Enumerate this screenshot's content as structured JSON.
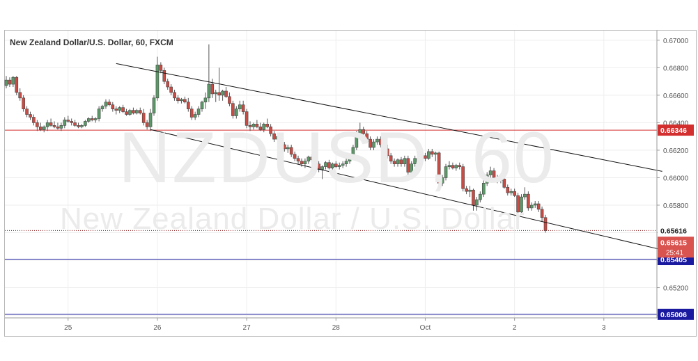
{
  "chart_data": {
    "type": "candlestick",
    "title": "New Zealand Dollar/U.S. Dollar, 60, FXCM",
    "watermark_symbol": "NZDUSD, 60",
    "watermark_name": "New Zealand Dollar / U.S. Dollar",
    "x_labels": [
      {
        "label": "25",
        "index": 18
      },
      {
        "label": "26",
        "index": 44
      },
      {
        "label": "27",
        "index": 70
      },
      {
        "label": "28",
        "index": 96
      },
      {
        "label": "Oct",
        "index": 122
      },
      {
        "label": "2",
        "index": 148
      },
      {
        "label": "3",
        "index": 174
      }
    ],
    "y_axis": {
      "ylim": [
        0.6498,
        0.6707
      ],
      "ticks": [
        "0.67000",
        "0.66800",
        "0.66600",
        "0.66400",
        "0.66200",
        "0.66000",
        "0.65800",
        "0.65600",
        "0.65400",
        "0.65200",
        "0.65000"
      ]
    },
    "horizontal_levels": [
      {
        "value": 0.66346,
        "label": "0.66346",
        "color": "#d32f2f",
        "style": "solid"
      },
      {
        "value": 0.65405,
        "label": "0.65405",
        "color": "#1a1aa0",
        "style": "solid"
      },
      {
        "value": 0.65006,
        "label": "0.65006",
        "color": "#1a1aa0",
        "style": "solid"
      },
      {
        "value": 0.65616,
        "label": "0.65616",
        "color": "#8a1a1a",
        "style": "dotted"
      }
    ],
    "price_labels": {
      "last": "0.65615",
      "countdown": "25:41"
    },
    "channel_lines": [
      {
        "from": [
          32,
          0.6683
        ],
        "to": [
          191,
          0.66046
        ]
      },
      {
        "from": [
          42,
          0.6635
        ],
        "to": [
          191,
          0.65475
        ]
      }
    ],
    "candles": [
      [
        0.6667,
        0.6674,
        0.6665,
        0.6671
      ],
      [
        0.6671,
        0.6673,
        0.6666,
        0.6668
      ],
      [
        0.6668,
        0.6674,
        0.6666,
        0.6673
      ],
      [
        0.6673,
        0.6674,
        0.666,
        0.6662
      ],
      [
        0.6662,
        0.6665,
        0.6656,
        0.6658
      ],
      [
        0.6658,
        0.666,
        0.6648,
        0.665
      ],
      [
        0.665,
        0.6652,
        0.6644,
        0.6646
      ],
      [
        0.6646,
        0.6648,
        0.6642,
        0.6644
      ],
      [
        0.6644,
        0.6646,
        0.6638,
        0.664
      ],
      [
        0.664,
        0.6642,
        0.6634,
        0.6637
      ],
      [
        0.6637,
        0.664,
        0.6634,
        0.6635
      ],
      [
        0.6635,
        0.6638,
        0.6633,
        0.6637
      ],
      [
        0.6637,
        0.6642,
        0.6634,
        0.664
      ],
      [
        0.664,
        0.6643,
        0.6637,
        0.6638
      ],
      [
        0.6638,
        0.6641,
        0.6636,
        0.6637
      ],
      [
        0.6637,
        0.664,
        0.6635,
        0.6636
      ],
      [
        0.6636,
        0.664,
        0.6634,
        0.6638
      ],
      [
        0.6638,
        0.6644,
        0.6636,
        0.6642
      ],
      [
        0.6642,
        0.6645,
        0.664,
        0.6641
      ],
      [
        0.6641,
        0.6643,
        0.6638,
        0.664
      ],
      [
        0.664,
        0.6642,
        0.6637,
        0.6638
      ],
      [
        0.6638,
        0.664,
        0.6636,
        0.6637
      ],
      [
        0.6637,
        0.6639,
        0.6636,
        0.6638
      ],
      [
        0.6638,
        0.6642,
        0.6637,
        0.6641
      ],
      [
        0.6641,
        0.6644,
        0.664,
        0.6643
      ],
      [
        0.6643,
        0.6645,
        0.6641,
        0.6642
      ],
      [
        0.6642,
        0.6644,
        0.664,
        0.6643
      ],
      [
        0.6643,
        0.6652,
        0.6641,
        0.665
      ],
      [
        0.665,
        0.6653,
        0.6648,
        0.6652
      ],
      [
        0.6652,
        0.6657,
        0.665,
        0.6655
      ],
      [
        0.6655,
        0.6657,
        0.6652,
        0.6653
      ],
      [
        0.6653,
        0.6655,
        0.6648,
        0.665
      ],
      [
        0.665,
        0.6652,
        0.6646,
        0.6649
      ],
      [
        0.6649,
        0.6652,
        0.6647,
        0.6651
      ],
      [
        0.6651,
        0.6653,
        0.6647,
        0.6648
      ],
      [
        0.6648,
        0.665,
        0.6645,
        0.6646
      ],
      [
        0.6646,
        0.665,
        0.6645,
        0.6649
      ],
      [
        0.6649,
        0.6651,
        0.6646,
        0.6647
      ],
      [
        0.6647,
        0.665,
        0.6646,
        0.6649
      ],
      [
        0.6649,
        0.6651,
        0.6646,
        0.6647
      ],
      [
        0.6647,
        0.665,
        0.6638,
        0.664
      ],
      [
        0.664,
        0.6642,
        0.6635,
        0.6637
      ],
      [
        0.6637,
        0.665,
        0.6634,
        0.6647
      ],
      [
        0.6647,
        0.666,
        0.6645,
        0.6658
      ],
      [
        0.6658,
        0.6688,
        0.6656,
        0.6682
      ],
      [
        0.6682,
        0.6684,
        0.6676,
        0.6678
      ],
      [
        0.6678,
        0.668,
        0.6668,
        0.667
      ],
      [
        0.667,
        0.6672,
        0.6664,
        0.6666
      ],
      [
        0.6666,
        0.6668,
        0.666,
        0.6662
      ],
      [
        0.6662,
        0.6664,
        0.6656,
        0.6658
      ],
      [
        0.6658,
        0.666,
        0.6654,
        0.6656
      ],
      [
        0.6656,
        0.6658,
        0.6654,
        0.6657
      ],
      [
        0.6657,
        0.6659,
        0.6654,
        0.6655
      ],
      [
        0.6655,
        0.6658,
        0.6648,
        0.665
      ],
      [
        0.665,
        0.6652,
        0.6642,
        0.6644
      ],
      [
        0.6644,
        0.6648,
        0.6642,
        0.6646
      ],
      [
        0.6646,
        0.6652,
        0.6644,
        0.665
      ],
      [
        0.665,
        0.6656,
        0.6648,
        0.6655
      ],
      [
        0.6655,
        0.6662,
        0.665,
        0.6658
      ],
      [
        0.6658,
        0.6697,
        0.6655,
        0.6668
      ],
      [
        0.6668,
        0.6672,
        0.6658,
        0.6661
      ],
      [
        0.6661,
        0.6664,
        0.6655,
        0.6662
      ],
      [
        0.6662,
        0.668,
        0.6656,
        0.666
      ],
      [
        0.666,
        0.6664,
        0.6656,
        0.6663
      ],
      [
        0.6663,
        0.6666,
        0.6658,
        0.6659
      ],
      [
        0.6659,
        0.6662,
        0.6652,
        0.6654
      ],
      [
        0.6654,
        0.6656,
        0.6643,
        0.6645
      ],
      [
        0.6645,
        0.6652,
        0.6643,
        0.665
      ],
      [
        0.665,
        0.6656,
        0.6648,
        0.6653
      ],
      [
        0.6653,
        0.6656,
        0.6646,
        0.6648
      ],
      [
        0.6648,
        0.665,
        0.6636,
        0.6638
      ],
      [
        0.6638,
        0.6641,
        0.6634,
        0.6637
      ],
      [
        0.6637,
        0.664,
        0.6635,
        0.6639
      ],
      [
        0.6639,
        0.6642,
        0.6636,
        0.6637
      ],
      [
        0.6637,
        0.664,
        0.6634,
        0.6635
      ],
      [
        0.6635,
        0.664,
        0.6633,
        0.6639
      ],
      [
        0.6639,
        0.6643,
        0.6636,
        0.6637
      ],
      [
        0.6637,
        0.6639,
        0.663,
        0.6632
      ],
      [
        0.6632,
        0.6634,
        0.6626,
        0.6628
      ],
      [
        0.6628,
        0.6632,
        0.6626,
        0.663
      ],
      [
        0.663,
        0.6632,
        0.6622,
        0.6624
      ],
      [
        0.6624,
        0.6626,
        0.6619,
        0.6621
      ],
      [
        0.6621,
        0.6624,
        0.6618,
        0.6622
      ],
      [
        0.6622,
        0.6624,
        0.6615,
        0.6617
      ],
      [
        0.6617,
        0.6619,
        0.6612,
        0.6614
      ],
      [
        0.6614,
        0.6616,
        0.661,
        0.6612
      ],
      [
        0.6612,
        0.6614,
        0.6608,
        0.661
      ],
      [
        0.661,
        0.6614,
        0.6607,
        0.6612
      ],
      [
        0.6612,
        0.6616,
        0.661,
        0.6615
      ],
      [
        0.6615,
        0.6617,
        0.6611,
        0.6613
      ],
      [
        0.6613,
        0.6615,
        0.6608,
        0.661
      ],
      [
        0.661,
        0.6612,
        0.6604,
        0.6606
      ],
      [
        0.6606,
        0.6609,
        0.6599,
        0.6608
      ],
      [
        0.6608,
        0.6612,
        0.6606,
        0.6611
      ],
      [
        0.6611,
        0.6613,
        0.6606,
        0.6607
      ],
      [
        0.6607,
        0.6611,
        0.6605,
        0.661
      ],
      [
        0.661,
        0.6612,
        0.6607,
        0.6608
      ],
      [
        0.6608,
        0.6611,
        0.6606,
        0.6609
      ],
      [
        0.6609,
        0.6612,
        0.6607,
        0.661
      ],
      [
        0.661,
        0.6614,
        0.6608,
        0.6612
      ],
      [
        0.6612,
        0.6616,
        0.661,
        0.6615
      ],
      [
        0.6615,
        0.6624,
        0.6613,
        0.6622
      ],
      [
        0.6622,
        0.6634,
        0.662,
        0.6632
      ],
      [
        0.6632,
        0.664,
        0.6628,
        0.6635
      ],
      [
        0.6635,
        0.6637,
        0.663,
        0.6632
      ],
      [
        0.6632,
        0.6634,
        0.6626,
        0.6628
      ],
      [
        0.6628,
        0.663,
        0.662,
        0.6622
      ],
      [
        0.6622,
        0.6628,
        0.662,
        0.6626
      ],
      [
        0.6626,
        0.663,
        0.6624,
        0.6628
      ],
      [
        0.6628,
        0.663,
        0.6622,
        0.6624
      ],
      [
        0.6624,
        0.6627,
        0.662,
        0.6621
      ],
      [
        0.6621,
        0.6624,
        0.6614,
        0.6616
      ],
      [
        0.6616,
        0.6618,
        0.661,
        0.6612
      ],
      [
        0.6612,
        0.6614,
        0.6608,
        0.661
      ],
      [
        0.661,
        0.6614,
        0.6608,
        0.6613
      ],
      [
        0.6613,
        0.6615,
        0.6608,
        0.661
      ],
      [
        0.661,
        0.6616,
        0.6608,
        0.6614
      ],
      [
        0.6614,
        0.6616,
        0.6602,
        0.6604
      ],
      [
        0.6604,
        0.6612,
        0.6602,
        0.661
      ],
      [
        0.661,
        0.6616,
        0.6608,
        0.6614
      ],
      [
        0.6614,
        0.6616,
        0.661,
        0.6612
      ],
      [
        0.6612,
        0.6617,
        0.661,
        0.6616
      ],
      [
        0.6616,
        0.6618,
        0.6612,
        0.6614
      ],
      [
        0.6614,
        0.6621,
        0.6613,
        0.6619
      ],
      [
        0.6619,
        0.6621,
        0.6615,
        0.6617
      ],
      [
        0.6617,
        0.6619,
        0.6612,
        0.6618
      ],
      [
        0.6618,
        0.6619,
        0.6594,
        0.6596
      ],
      [
        0.6596,
        0.6602,
        0.6594,
        0.66
      ],
      [
        0.66,
        0.661,
        0.6598,
        0.6608
      ],
      [
        0.6608,
        0.6612,
        0.6606,
        0.6609
      ],
      [
        0.6609,
        0.6611,
        0.6606,
        0.6607
      ],
      [
        0.6607,
        0.661,
        0.6605,
        0.6609
      ],
      [
        0.6609,
        0.6611,
        0.6606,
        0.6608
      ],
      [
        0.6608,
        0.661,
        0.659,
        0.6592
      ],
      [
        0.6592,
        0.6594,
        0.6588,
        0.659
      ],
      [
        0.659,
        0.6594,
        0.6586,
        0.6591
      ],
      [
        0.6591,
        0.6592,
        0.6576,
        0.658
      ],
      [
        0.658,
        0.6586,
        0.6576,
        0.6584
      ],
      [
        0.6584,
        0.659,
        0.6582,
        0.6588
      ],
      [
        0.6588,
        0.6598,
        0.6586,
        0.6596
      ],
      [
        0.6596,
        0.6604,
        0.6594,
        0.6602
      ],
      [
        0.6602,
        0.6608,
        0.66,
        0.6605
      ],
      [
        0.6605,
        0.6607,
        0.6598,
        0.66
      ],
      [
        0.66,
        0.6602,
        0.6596,
        0.6598
      ],
      [
        0.6598,
        0.66,
        0.6596,
        0.6599
      ],
      [
        0.6599,
        0.6601,
        0.6592,
        0.6593
      ],
      [
        0.6593,
        0.6595,
        0.6587,
        0.6589
      ],
      [
        0.6589,
        0.6592,
        0.6587,
        0.659
      ],
      [
        0.659,
        0.6592,
        0.6586,
        0.6587
      ],
      [
        0.6587,
        0.6589,
        0.657,
        0.6575
      ],
      [
        0.6575,
        0.6588,
        0.6573,
        0.6586
      ],
      [
        0.6586,
        0.6593,
        0.6584,
        0.6588
      ],
      [
        0.6588,
        0.659,
        0.6576,
        0.6578
      ],
      [
        0.6578,
        0.6582,
        0.6576,
        0.658
      ],
      [
        0.658,
        0.6583,
        0.6578,
        0.6581
      ],
      [
        0.6581,
        0.6583,
        0.6575,
        0.6577
      ],
      [
        0.6577,
        0.6579,
        0.6568,
        0.6571
      ],
      [
        0.6571,
        0.6573,
        0.656,
        0.65615
      ]
    ]
  }
}
